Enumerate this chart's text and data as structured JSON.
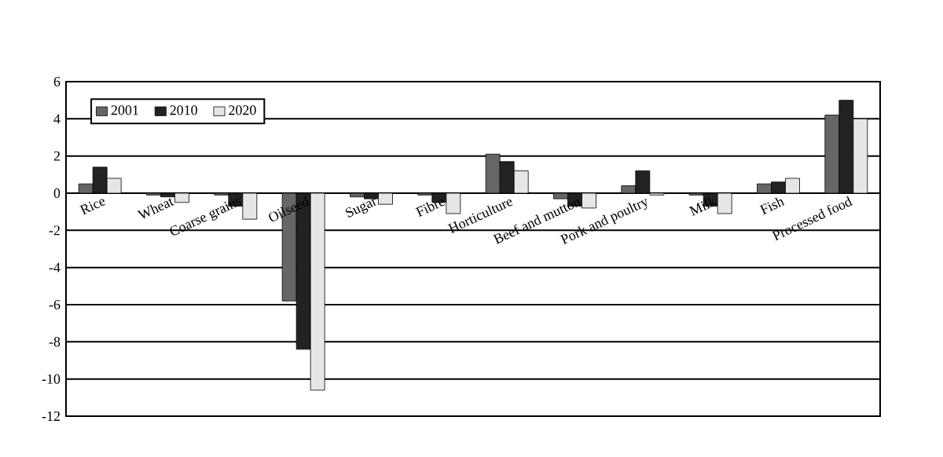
{
  "chart_data": {
    "type": "bar",
    "categories": [
      "Rice",
      "Wheat",
      "Coarse grains",
      "Oilseed",
      "Sugar",
      "Fibre",
      "Horticulture",
      "Beef and mutton",
      "Pork and poultry",
      "Milk",
      "Fish",
      "Processed food"
    ],
    "series": [
      {
        "name": "2001",
        "color": "#666666",
        "values": [
          0.5,
          -0.1,
          -0.1,
          -5.8,
          -0.2,
          -0.1,
          2.1,
          -0.3,
          0.4,
          -0.1,
          0.5,
          4.2
        ]
      },
      {
        "name": "2010",
        "color": "#222222",
        "values": [
          1.4,
          -0.2,
          -0.7,
          -8.4,
          -0.3,
          -0.5,
          1.7,
          -0.7,
          1.2,
          -0.7,
          0.6,
          5.0
        ]
      },
      {
        "name": "2020",
        "color": "#e6e6e6",
        "values": [
          0.8,
          -0.5,
          -1.4,
          -10.6,
          -0.6,
          -1.1,
          1.2,
          -0.8,
          -0.1,
          -1.1,
          0.8,
          4.0
        ]
      }
    ],
    "ylim": [
      -12,
      6
    ],
    "yticks": [
      -12,
      -10,
      -8,
      -6,
      -4,
      -2,
      0,
      2,
      4,
      6
    ],
    "grid": "y",
    "legend": "top left"
  }
}
